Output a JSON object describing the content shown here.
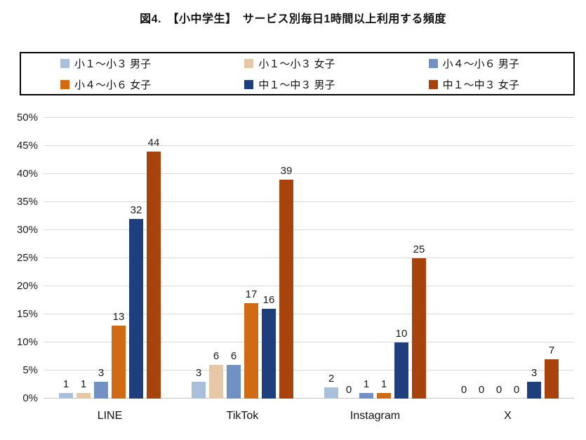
{
  "chart_data": {
    "type": "bar",
    "title": "図4.　【小中学生】　サービス別毎日1時間以上利用する頻度",
    "categories": [
      "LINE",
      "TikTok",
      "Instagram",
      "X"
    ],
    "series": [
      {
        "name": "小１～小３ 男子",
        "color": "#A9BFDC",
        "values": [
          1,
          3,
          2,
          0
        ]
      },
      {
        "name": "小１～小３ 女子",
        "color": "#E6C7A6",
        "values": [
          1,
          6,
          0,
          0
        ]
      },
      {
        "name": "小４～小６ 男子",
        "color": "#7191C4",
        "values": [
          3,
          6,
          1,
          0
        ]
      },
      {
        "name": "小４～小６ 女子",
        "color": "#D06A15",
        "values": [
          13,
          17,
          1,
          0
        ]
      },
      {
        "name": "中１～中３ 男子",
        "color": "#1F3F7C",
        "values": [
          32,
          16,
          10,
          3
        ]
      },
      {
        "name": "中１～中３ 女子",
        "color": "#A8430E",
        "values": [
          44,
          39,
          25,
          7
        ]
      }
    ],
    "xlabel": "",
    "ylabel": "",
    "ylim": [
      0,
      50
    ],
    "ytick_step": 5,
    "ytick_labels": [
      "0%",
      "5%",
      "10%",
      "15%",
      "20%",
      "25%",
      "30%",
      "35%",
      "40%",
      "45%",
      "50%"
    ],
    "grid": true,
    "data_labels": true,
    "legend_position": "top"
  }
}
